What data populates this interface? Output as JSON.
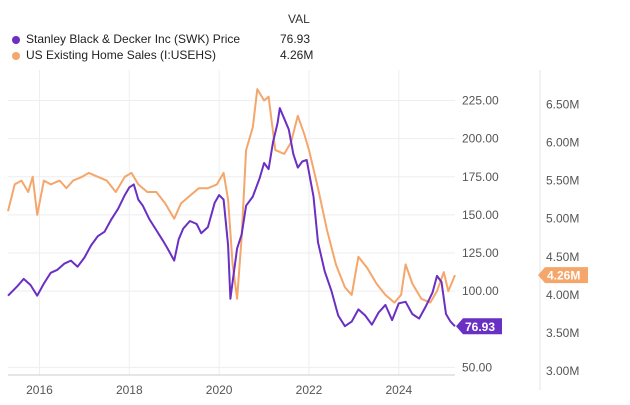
{
  "legend": {
    "header": "VAL",
    "items": [
      {
        "label": "Stanley Black & Decker Inc (SWK) Price",
        "value": "76.93",
        "color": "#6a2fc3"
      },
      {
        "label": "US Existing Home Sales (I:USEHS)",
        "value": "4.26M",
        "color": "#f5a66b"
      }
    ]
  },
  "chart_data": {
    "type": "line",
    "x_ticks": [
      "2016",
      "2018",
      "2020",
      "2022",
      "2024"
    ],
    "xlim": [
      2015.3,
      2025.25
    ],
    "y_left": {
      "ticks": [
        "225.00",
        "200.00",
        "175.00",
        "150.00",
        "125.00",
        "100.00",
        "50.00"
      ],
      "tick_values": [
        225,
        200,
        175,
        150,
        125,
        100,
        50
      ],
      "lim": [
        45,
        245
      ]
    },
    "y_right": {
      "ticks": [
        "6.50M",
        "6.00M",
        "5.50M",
        "5.00M",
        "4.50M",
        "4.00M",
        "3.50M",
        "3.00M"
      ],
      "tick_values": [
        6.5,
        6.0,
        5.5,
        5.0,
        4.5,
        4.0,
        3.5,
        3.0
      ],
      "lim": [
        2.95,
        6.95
      ]
    },
    "grid": true,
    "series": [
      {
        "name": "Stanley Black & Decker Inc (SWK) Price",
        "axis": "left",
        "color": "#6a2fc3",
        "last_label": "76.93",
        "points": [
          [
            2015.3,
            97
          ],
          [
            2015.5,
            103
          ],
          [
            2015.65,
            108
          ],
          [
            2015.8,
            104
          ],
          [
            2015.95,
            97
          ],
          [
            2016.1,
            105
          ],
          [
            2016.25,
            112
          ],
          [
            2016.4,
            114
          ],
          [
            2016.55,
            118
          ],
          [
            2016.7,
            120
          ],
          [
            2016.85,
            116
          ],
          [
            2017.0,
            122
          ],
          [
            2017.15,
            130
          ],
          [
            2017.3,
            136
          ],
          [
            2017.45,
            139
          ],
          [
            2017.6,
            147
          ],
          [
            2017.75,
            154
          ],
          [
            2017.9,
            163
          ],
          [
            2018.0,
            168
          ],
          [
            2018.1,
            170
          ],
          [
            2018.2,
            160
          ],
          [
            2018.3,
            156
          ],
          [
            2018.45,
            147
          ],
          [
            2018.6,
            140
          ],
          [
            2018.75,
            133
          ],
          [
            2018.85,
            128
          ],
          [
            2019.0,
            120
          ],
          [
            2019.1,
            134
          ],
          [
            2019.2,
            141
          ],
          [
            2019.35,
            146
          ],
          [
            2019.5,
            144
          ],
          [
            2019.6,
            138
          ],
          [
            2019.75,
            142
          ],
          [
            2019.9,
            158
          ],
          [
            2020.0,
            163
          ],
          [
            2020.1,
            160
          ],
          [
            2020.2,
            130
          ],
          [
            2020.25,
            95
          ],
          [
            2020.3,
            106
          ],
          [
            2020.4,
            128
          ],
          [
            2020.5,
            137
          ],
          [
            2020.6,
            156
          ],
          [
            2020.75,
            162
          ],
          [
            2020.9,
            174
          ],
          [
            2021.0,
            184
          ],
          [
            2021.1,
            180
          ],
          [
            2021.2,
            198
          ],
          [
            2021.3,
            210
          ],
          [
            2021.35,
            220
          ],
          [
            2021.45,
            213
          ],
          [
            2021.55,
            206
          ],
          [
            2021.65,
            190
          ],
          [
            2021.75,
            181
          ],
          [
            2021.85,
            185
          ],
          [
            2021.95,
            186
          ],
          [
            2022.1,
            162
          ],
          [
            2022.2,
            132
          ],
          [
            2022.35,
            113
          ],
          [
            2022.5,
            100
          ],
          [
            2022.65,
            84
          ],
          [
            2022.8,
            77
          ],
          [
            2022.95,
            80
          ],
          [
            2023.1,
            88
          ],
          [
            2023.25,
            84
          ],
          [
            2023.4,
            78
          ],
          [
            2023.55,
            86
          ],
          [
            2023.7,
            91
          ],
          [
            2023.85,
            81
          ],
          [
            2024.0,
            92
          ],
          [
            2024.15,
            93
          ],
          [
            2024.3,
            85
          ],
          [
            2024.45,
            82
          ],
          [
            2024.6,
            90
          ],
          [
            2024.75,
            99
          ],
          [
            2024.85,
            110
          ],
          [
            2024.95,
            106
          ],
          [
            2025.05,
            85
          ],
          [
            2025.15,
            80
          ],
          [
            2025.25,
            76.93
          ]
        ]
      },
      {
        "name": "US Existing Home Sales (I:USEHS)",
        "axis": "right",
        "color": "#f5a66b",
        "last_label": "4.26M",
        "points": [
          [
            2015.3,
            5.1
          ],
          [
            2015.45,
            5.45
          ],
          [
            2015.6,
            5.5
          ],
          [
            2015.75,
            5.35
          ],
          [
            2015.85,
            5.55
          ],
          [
            2015.95,
            5.05
          ],
          [
            2016.1,
            5.5
          ],
          [
            2016.25,
            5.45
          ],
          [
            2016.45,
            5.5
          ],
          [
            2016.6,
            5.4
          ],
          [
            2016.75,
            5.5
          ],
          [
            2016.95,
            5.55
          ],
          [
            2017.1,
            5.6
          ],
          [
            2017.3,
            5.55
          ],
          [
            2017.5,
            5.5
          ],
          [
            2017.7,
            5.35
          ],
          [
            2017.9,
            5.55
          ],
          [
            2018.05,
            5.6
          ],
          [
            2018.2,
            5.45
          ],
          [
            2018.4,
            5.35
          ],
          [
            2018.6,
            5.35
          ],
          [
            2018.8,
            5.2
          ],
          [
            2019.0,
            5.0
          ],
          [
            2019.15,
            5.2
          ],
          [
            2019.35,
            5.3
          ],
          [
            2019.55,
            5.4
          ],
          [
            2019.75,
            5.4
          ],
          [
            2019.95,
            5.45
          ],
          [
            2020.1,
            5.6
          ],
          [
            2020.2,
            5.25
          ],
          [
            2020.3,
            4.4
          ],
          [
            2020.4,
            3.95
          ],
          [
            2020.5,
            4.75
          ],
          [
            2020.6,
            5.9
          ],
          [
            2020.75,
            6.2
          ],
          [
            2020.85,
            6.7
          ],
          [
            2021.0,
            6.55
          ],
          [
            2021.1,
            6.6
          ],
          [
            2021.25,
            5.9
          ],
          [
            2021.45,
            5.85
          ],
          [
            2021.6,
            6.0
          ],
          [
            2021.75,
            6.35
          ],
          [
            2021.9,
            6.1
          ],
          [
            2022.0,
            5.9
          ],
          [
            2022.2,
            5.4
          ],
          [
            2022.4,
            4.85
          ],
          [
            2022.6,
            4.4
          ],
          [
            2022.8,
            4.1
          ],
          [
            2022.95,
            4.0
          ],
          [
            2023.1,
            4.5
          ],
          [
            2023.3,
            4.35
          ],
          [
            2023.5,
            4.15
          ],
          [
            2023.7,
            4.0
          ],
          [
            2023.9,
            3.9
          ],
          [
            2024.05,
            4.0
          ],
          [
            2024.15,
            4.4
          ],
          [
            2024.3,
            4.15
          ],
          [
            2024.5,
            3.95
          ],
          [
            2024.7,
            3.9
          ],
          [
            2024.85,
            4.05
          ],
          [
            2025.0,
            4.3
          ],
          [
            2025.1,
            4.05
          ],
          [
            2025.25,
            4.26
          ]
        ]
      }
    ]
  }
}
